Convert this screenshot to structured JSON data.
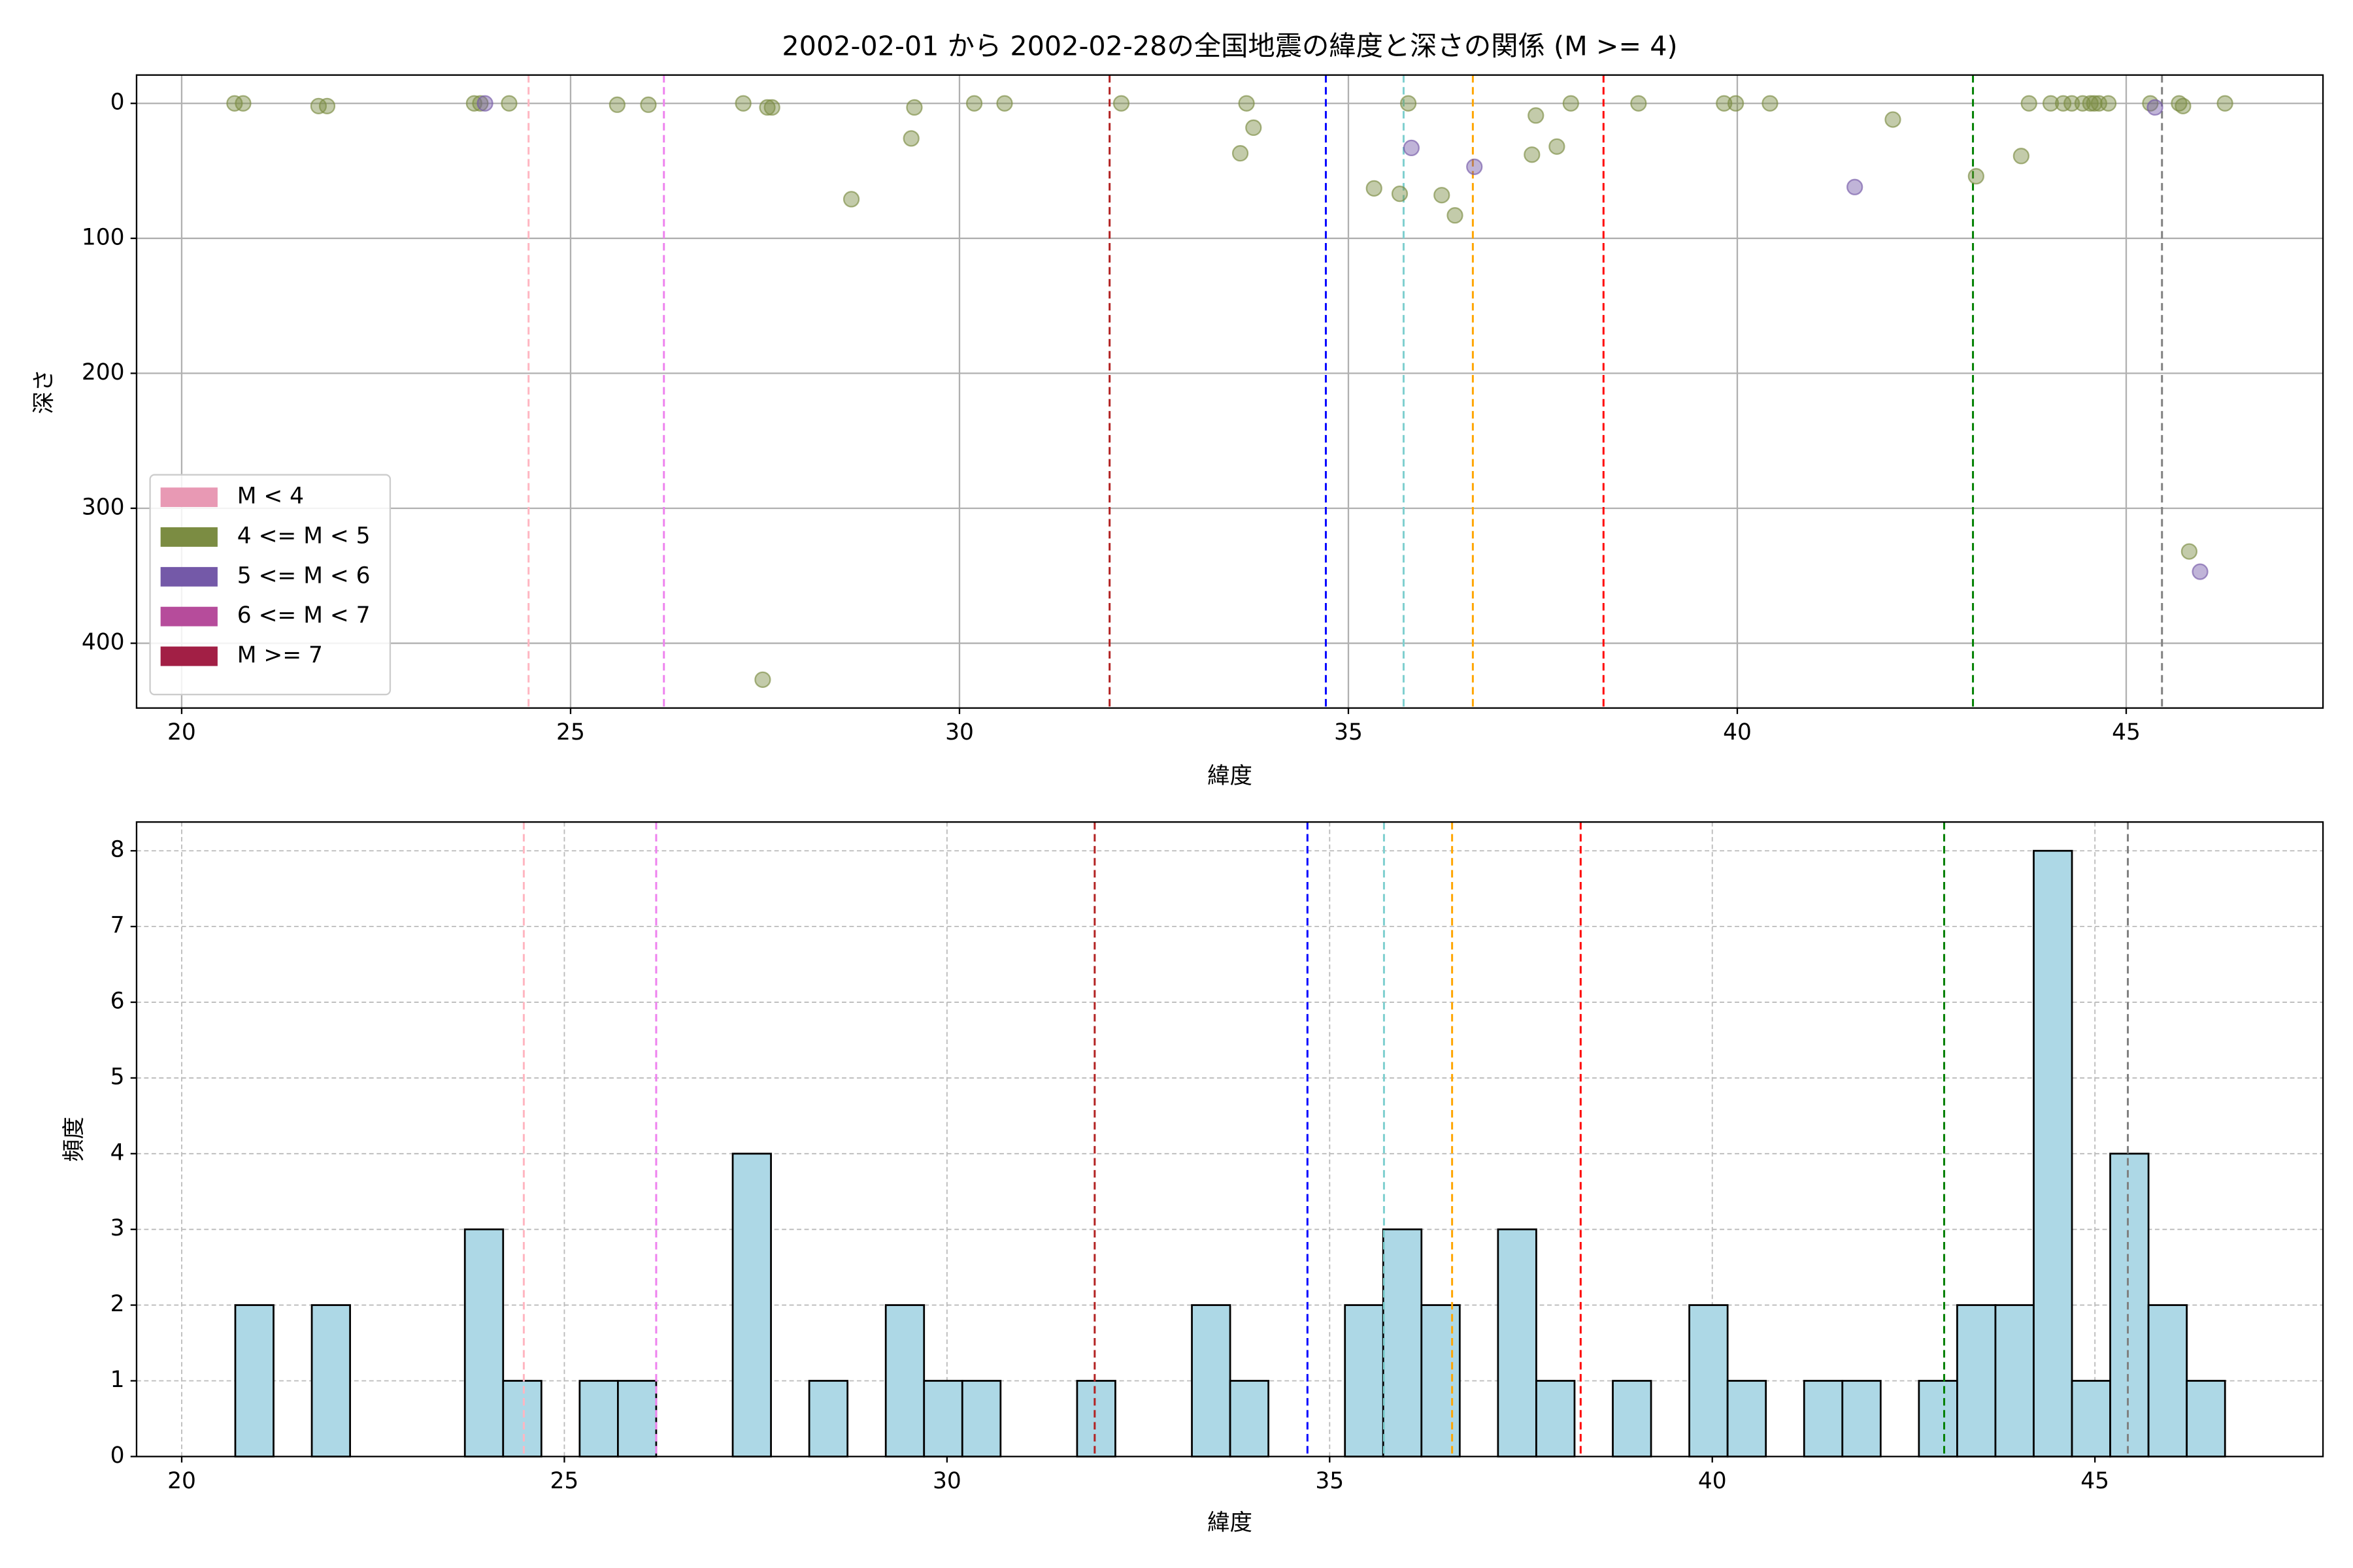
{
  "chart_data": [
    {
      "type": "scatter",
      "title": "2002-02-01 から 2002-02-28の全国地震の緯度と深さの関係 (M >= 4)",
      "xlabel": "緯度",
      "ylabel": "深さ",
      "xlim": [
        19.42,
        47.53
      ],
      "ylim": [
        -21,
        448
      ],
      "y_inverted": true,
      "xticks": [
        20,
        25,
        30,
        35,
        40,
        45
      ],
      "yticks": [
        0,
        100,
        200,
        300,
        400
      ],
      "grid": true,
      "legend": "lower left",
      "alpha": 0.45,
      "series": [
        {
          "name": "M < 4",
          "color": "#e899b4",
          "x": [],
          "y": []
        },
        {
          "name": "4 <= M < 5",
          "color": "#7b8c42",
          "x": [
            20.68,
            20.79,
            21.76,
            21.87,
            23.76,
            23.84,
            24.21,
            25.6,
            26.0,
            27.22,
            27.53,
            27.59,
            27.47,
            28.61,
            29.38,
            29.42,
            30.19,
            30.58,
            32.08,
            33.61,
            33.69,
            33.78,
            35.33,
            35.66,
            35.77,
            36.2,
            36.37,
            37.36,
            37.41,
            37.68,
            37.86,
            38.73,
            39.83,
            39.98,
            40.42,
            42.0,
            43.07,
            43.65,
            43.75,
            44.03,
            44.19,
            44.3,
            44.44,
            44.54,
            44.59,
            44.65,
            44.77,
            45.31,
            45.68,
            45.73,
            45.81,
            46.27
          ],
          "y": [
            0,
            0,
            2,
            2,
            0,
            0,
            0,
            1,
            1,
            0,
            3,
            3,
            427,
            71,
            26,
            3,
            0,
            0,
            0,
            37,
            0,
            18,
            63,
            67,
            0,
            68,
            83,
            38,
            9,
            32,
            0,
            0,
            0,
            0,
            0,
            12,
            54,
            39,
            0,
            0,
            0,
            0,
            0,
            0,
            0,
            0,
            0,
            0,
            0,
            2,
            332,
            0
          ]
        },
        {
          "name": "5 <= M < 6",
          "color": "#7459a8",
          "x": [
            23.9,
            35.81,
            36.62,
            41.51,
            45.37,
            45.95
          ],
          "y": [
            0,
            33,
            47,
            62,
            3,
            347
          ]
        },
        {
          "name": "6 <= M < 7",
          "color": "#b64c9b",
          "x": [],
          "y": []
        },
        {
          "name": "M >= 7",
          "color": "#a21f45",
          "x": [],
          "y": []
        }
      ],
      "vlines": [
        {
          "value": 24.46,
          "color": "#ffb6c1"
        },
        {
          "value": 26.2,
          "color": "#ee82ee"
        },
        {
          "value": 31.93,
          "color": "#b22222"
        },
        {
          "value": 34.71,
          "color": "#0000ff"
        },
        {
          "value": 35.71,
          "color": "#7fcfcf"
        },
        {
          "value": 36.6,
          "color": "#ffa500"
        },
        {
          "value": 38.28,
          "color": "#ff0000"
        },
        {
          "value": 43.03,
          "color": "#008000"
        },
        {
          "value": 45.46,
          "color": "#808080"
        }
      ]
    },
    {
      "type": "histogram",
      "xlabel": "緯度",
      "ylabel": "頻度",
      "xlim": [
        19.41,
        47.98
      ],
      "ylim": [
        0,
        8.38
      ],
      "xticks": [
        20,
        25,
        30,
        35,
        40,
        45
      ],
      "yticks": [
        0,
        1,
        2,
        3,
        4,
        5,
        6,
        7,
        8
      ],
      "grid": "dashed",
      "color": "#add8e6",
      "edgecolor": "#000000",
      "bins": [
        20.7,
        21.2,
        21.7,
        22.2,
        22.7,
        23.2,
        23.7,
        24.2,
        24.7,
        25.2,
        25.7,
        26.2,
        26.7,
        27.2,
        27.7,
        28.2,
        28.7,
        29.2,
        29.7,
        30.2,
        30.7,
        31.2,
        31.7,
        32.2,
        32.7,
        33.2,
        33.7,
        34.2,
        34.7,
        35.2,
        35.7,
        36.2,
        36.7,
        37.2,
        37.7,
        38.2,
        38.7,
        39.2,
        39.7,
        40.2,
        40.7,
        41.2,
        41.7,
        42.2,
        42.7,
        43.2,
        43.7,
        44.2,
        44.7,
        45.2,
        45.7,
        46.2,
        46.7
      ],
      "counts": [
        2,
        0,
        2,
        0,
        0,
        0,
        3,
        1,
        0,
        1,
        1,
        0,
        0,
        4,
        0,
        1,
        0,
        2,
        1,
        1,
        0,
        0,
        1,
        0,
        0,
        2,
        1,
        0,
        0,
        2,
        3,
        2,
        0,
        3,
        1,
        0,
        1,
        0,
        2,
        1,
        0,
        1,
        1,
        0,
        1,
        2,
        2,
        8,
        1,
        4,
        2,
        1
      ],
      "vlines": [
        {
          "value": 24.47,
          "color": "#ffb6c1"
        },
        {
          "value": 26.2,
          "color": "#ee82ee"
        },
        {
          "value": 31.93,
          "color": "#b22222"
        },
        {
          "value": 34.71,
          "color": "#0000ff"
        },
        {
          "value": 35.71,
          "color": "#7fcfcf"
        },
        {
          "value": 36.6,
          "color": "#ffa500"
        },
        {
          "value": 38.28,
          "color": "#ff0000"
        },
        {
          "value": 43.03,
          "color": "#008000"
        },
        {
          "value": 45.43,
          "color": "#808080"
        }
      ]
    }
  ]
}
